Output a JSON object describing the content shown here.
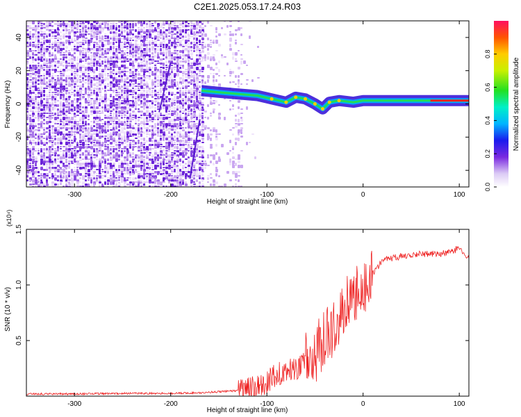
{
  "title": "C2E1.2025.053.17.24.R03",
  "chart_data": [
    {
      "type": "heatmap",
      "xlabel": "Height of straight line (km)",
      "ylabel": "Frequency (Hz)",
      "xlim": [
        -350,
        110
      ],
      "ylim": [
        -50,
        50
      ],
      "x_ticks": [
        -300,
        -200,
        -100,
        0,
        100
      ],
      "y_ticks": [
        -40,
        -20,
        0,
        20,
        40
      ],
      "colorbar": {
        "label": "Normalized spectral amplitude",
        "range": [
          0,
          1
        ],
        "ticks": [
          "0.0",
          "0.2",
          "0.4",
          "0.6",
          "0.8"
        ]
      },
      "signal_track": {
        "x": [
          -168,
          -150,
          -130,
          -110,
          -95,
          -80,
          -70,
          -60,
          -50,
          -42,
          -35,
          -25,
          -10,
          0,
          20,
          50,
          80,
          110
        ],
        "freq_hz": [
          8,
          7,
          6,
          5,
          3,
          1,
          4,
          3,
          0,
          -3,
          1,
          2,
          1,
          2,
          2,
          2,
          2,
          2
        ]
      }
    },
    {
      "type": "line",
      "xlabel": "Height of straight line (km)",
      "ylabel": "SNR (10 * v/v)",
      "y_multiplier": "(x10⁴)",
      "xlim": [
        -350,
        110
      ],
      "ylim": [
        0,
        1.5
      ],
      "x_ticks": [
        -300,
        -200,
        -100,
        0,
        100
      ],
      "y_ticks": [
        "0.5",
        "1.0",
        "1.5"
      ],
      "series": [
        {
          "color": "#ee2222",
          "x": [
            -350,
            -300,
            -250,
            -200,
            -170,
            -150,
            -130,
            -115,
            -100,
            -90,
            -80,
            -70,
            -60,
            -50,
            -40,
            -30,
            -20,
            -10,
            0,
            10,
            20,
            40,
            60,
            80,
            95,
            100,
            105,
            110
          ],
          "y": [
            0.02,
            0.02,
            0.025,
            0.025,
            0.03,
            0.04,
            0.05,
            0.07,
            0.12,
            0.2,
            0.22,
            0.25,
            0.3,
            0.38,
            0.5,
            0.65,
            0.8,
            0.9,
            0.96,
            1.1,
            1.22,
            1.26,
            1.28,
            1.28,
            1.3,
            1.35,
            1.26,
            1.24
          ]
        }
      ]
    }
  ]
}
